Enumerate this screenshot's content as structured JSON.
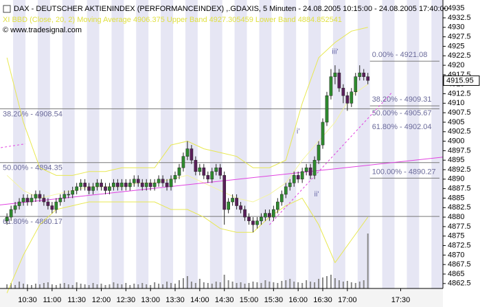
{
  "chart_data": {
    "type": "candlestick",
    "title": "DAX  - DEUTSCHER AKTIENINDEX (PERFORMANCEINDEX) ,.GDAXIS, 5 Minuten - 24.08.2005 10:15:00 - 24.08.2005 17:40:00",
    "subtitle": "XI BBD (Close, 20, 2) Moving Average 4906.375 Upper Band 4927.305459 Lower Band 4884.852541",
    "source": "© www.tradesignal.com",
    "xlim": [
      -1.7,
      106.3
    ],
    "ylim": [
      4861.2,
      4937.2
    ],
    "yticks": [
      4935,
      4932.5,
      4930,
      4927.5,
      4925,
      4922.5,
      4920,
      4917.5,
      4915,
      4912.5,
      4910,
      4907.5,
      4905,
      4902.5,
      4900,
      4897.5,
      4895,
      4892.5,
      4890,
      4887.5,
      4885,
      4882.5,
      4880,
      4877.5,
      4875,
      4872.5,
      4870,
      4867.5,
      4865,
      4862.5
    ],
    "xticks": [
      {
        "value": 5,
        "label": "10:30"
      },
      {
        "value": 11,
        "label": "11:00"
      },
      {
        "value": 17,
        "label": "11:30"
      },
      {
        "value": 23,
        "label": "12:00"
      },
      {
        "value": 29,
        "label": "12:30"
      },
      {
        "value": 35,
        "label": "13:00"
      },
      {
        "value": 41,
        "label": "13:30"
      },
      {
        "value": 47,
        "label": "14:00"
      },
      {
        "value": 53,
        "label": "14:30"
      },
      {
        "value": 59,
        "label": "15:00"
      },
      {
        "value": 65,
        "label": "15:30"
      },
      {
        "value": 71,
        "label": "16:00"
      },
      {
        "value": 77,
        "label": "16:30"
      },
      {
        "value": 83,
        "label": "17:00"
      },
      {
        "value": 96,
        "label": "17:30"
      }
    ],
    "up_color": "#2e8b2e",
    "down_color": "#5a1f5a",
    "open": [
      4879,
      4880,
      4882,
      4883,
      4884,
      4885,
      4884,
      4885,
      4886,
      4885,
      4884,
      4883,
      4882,
      4884,
      4885,
      4886,
      4886,
      4887,
      4888,
      4889,
      4888,
      4887,
      4888,
      4889,
      4888,
      4887,
      4888,
      4889,
      4888,
      4889,
      4888,
      4889,
      4890,
      4889,
      4888,
      4889,
      4888,
      4889,
      4890,
      4889,
      4888,
      4890,
      4891,
      4893,
      4896,
      4898,
      4895,
      4892,
      4893,
      4891,
      4890,
      4892,
      4893,
      4891,
      4882,
      4884,
      4885,
      4883,
      4882,
      4880,
      4879,
      4878,
      4879,
      4880,
      4881,
      4880,
      4882,
      4884,
      4886,
      4888,
      4889,
      4891,
      4890,
      4892,
      4893,
      4891,
      4895,
      4899,
      4905,
      4912,
      4917,
      4918,
      4914,
      4912,
      4910,
      4913,
      4917,
      4918,
      4917
    ],
    "high": [
      4881,
      4883,
      4884,
      4885,
      4886,
      4886,
      4886,
      4887,
      4887,
      4886,
      4885,
      4884,
      4885,
      4886,
      4887,
      4887,
      4888,
      4889,
      4890,
      4890,
      4889,
      4889,
      4890,
      4890,
      4889,
      4889,
      4890,
      4890,
      4890,
      4890,
      4890,
      4891,
      4891,
      4890,
      4890,
      4890,
      4890,
      4891,
      4891,
      4890,
      4891,
      4892,
      4894,
      4897,
      4900,
      4899,
      4896,
      4894,
      4894,
      4892,
      4893,
      4894,
      4894,
      4892,
      4885,
      4886,
      4886,
      4884,
      4883,
      4881,
      4880,
      4880,
      4881,
      4882,
      4882,
      4883,
      4885,
      4887,
      4889,
      4890,
      4892,
      4892,
      4893,
      4894,
      4894,
      4896,
      4900,
      4906,
      4913,
      4919,
      4920,
      4919,
      4915,
      4913,
      4914,
      4918,
      4920,
      4919,
      4918
    ],
    "low": [
      4878,
      4879,
      4881,
      4882,
      4883,
      4883,
      4883,
      4884,
      4884,
      4883,
      4882,
      4881,
      4881,
      4883,
      4884,
      4885,
      4885,
      4886,
      4887,
      4887,
      4886,
      4886,
      4887,
      4887,
      4886,
      4886,
      4887,
      4887,
      4887,
      4887,
      4887,
      4888,
      4888,
      4887,
      4887,
      4887,
      4887,
      4888,
      4888,
      4887,
      4887,
      4889,
      4890,
      4892,
      4895,
      4894,
      4891,
      4891,
      4890,
      4889,
      4889,
      4891,
      4890,
      4878,
      4881,
      4883,
      4882,
      4881,
      4879,
      4878,
      4876,
      4877,
      4878,
      4879,
      4879,
      4879,
      4881,
      4883,
      4885,
      4887,
      4888,
      4889,
      4889,
      4891,
      4890,
      4890,
      4894,
      4898,
      4904,
      4911,
      4915,
      4913,
      4910,
      4908,
      4909,
      4912,
      4916,
      4916,
      4915
    ],
    "close": [
      4880,
      4882,
      4883,
      4884,
      4885,
      4884,
      4885,
      4886,
      4885,
      4884,
      4883,
      4882,
      4884,
      4885,
      4886,
      4886,
      4887,
      4888,
      4889,
      4888,
      4887,
      4888,
      4889,
      4888,
      4887,
      4888,
      4889,
      4888,
      4889,
      4888,
      4889,
      4890,
      4889,
      4888,
      4889,
      4888,
      4889,
      4890,
      4889,
      4888,
      4890,
      4891,
      4893,
      4896,
      4898,
      4895,
      4892,
      4893,
      4891,
      4890,
      4892,
      4893,
      4891,
      4882,
      4884,
      4885,
      4883,
      4882,
      4880,
      4879,
      4878,
      4879,
      4880,
      4881,
      4880,
      4882,
      4884,
      4886,
      4888,
      4889,
      4891,
      4890,
      4892,
      4893,
      4891,
      4895,
      4899,
      4905,
      4912,
      4917,
      4918,
      4914,
      4912,
      4910,
      4913,
      4917,
      4918,
      4917,
      4916
    ],
    "volume": [
      6,
      8,
      5,
      10,
      7,
      6,
      5,
      7,
      6,
      8,
      9,
      6,
      5,
      7,
      8,
      6,
      5,
      9,
      7,
      6,
      5,
      8,
      6,
      7,
      5,
      6,
      9,
      7,
      6,
      8,
      5,
      7,
      6,
      8,
      6,
      5,
      9,
      7,
      6,
      10,
      8,
      7,
      12,
      15,
      18,
      10,
      8,
      14,
      9,
      8,
      7,
      10,
      9,
      20,
      12,
      10,
      8,
      9,
      7,
      8,
      10,
      9,
      8,
      12,
      10,
      9,
      8,
      11,
      12,
      14,
      10,
      9,
      8,
      12,
      10,
      9,
      14,
      16,
      18,
      20,
      15,
      12,
      10,
      11,
      9,
      8,
      10,
      12,
      80
    ],
    "volume_lim": [
      0,
      100
    ],
    "volume_color": "#888888",
    "bands": {
      "x": [
        0,
        4,
        8,
        12,
        16,
        20,
        24,
        28,
        32,
        36,
        40,
        44,
        48,
        52,
        56,
        60,
        64,
        68,
        72,
        76,
        80,
        84,
        88
      ],
      "color": "#e8e850",
      "series": [
        {
          "name": "Upper Band",
          "values": [
            4922,
            4905,
            4893,
            4891,
            4891,
            4892,
            4892,
            4893,
            4893,
            4893,
            4899,
            4900,
            4898,
            4897,
            4896,
            4893,
            4893,
            4895,
            4910,
            4922,
            4926,
            4929,
            4930
          ]
        },
        {
          "name": "Moving Average",
          "values": [
            4891,
            4887,
            4885,
            4886,
            4887,
            4888,
            4888,
            4888,
            4889,
            4889,
            4890,
            4891,
            4889,
            4887,
            4885,
            4884,
            4886,
            4889,
            4895,
            4900,
            4905,
            4912,
            4915
          ]
        },
        {
          "name": "Lower Band",
          "values": [
            4860,
            4870,
            4878,
            4882,
            4883,
            4884,
            4884,
            4884,
            4884,
            4884,
            4882,
            4882,
            4880,
            4877,
            4876,
            4876,
            4880,
            4883,
            4885,
            4878,
            4868,
            4874,
            4880
          ]
        }
      ]
    },
    "trendlines": [
      {
        "x": [
          -1.7,
          106.3
        ],
        "y": [
          4883.2,
          4895.8
        ],
        "dashed": false
      },
      {
        "x": [
          64,
          94
        ],
        "y": [
          4878,
          4913
        ],
        "dashed": true
      },
      {
        "x": [
          -1.5,
          4.5
        ],
        "y": [
          4898.3,
          4899.3
        ],
        "dashed": true
      }
    ],
    "trend_color": "#e040e0",
    "fibs": [
      {
        "label": "38.20% - 4908.54",
        "value": 4908.54,
        "side": "left"
      },
      {
        "label": "50.00% - 4894.35",
        "value": 4894.35,
        "side": "left"
      },
      {
        "label": "61.80% - 4880.17",
        "value": 4880.17,
        "side": "left"
      },
      {
        "label": "0.00% - 4921.08",
        "value": 4921.08,
        "side": "right"
      },
      {
        "label": "38.20% - 4909.31",
        "value": 4909.31,
        "side": "right"
      },
      {
        "label": "50.00% - 4905.67",
        "value": 4905.67,
        "side": "right"
      },
      {
        "label": "61.80% - 4902.04",
        "value": 4902.04,
        "side": "right"
      },
      {
        "label": "100.00% - 4890.27",
        "value": 4890.27,
        "side": "right"
      }
    ],
    "last": {
      "value": 4915.95,
      "label": "4915.95"
    },
    "annotations": [
      {
        "text": "iii'",
        "x": 80,
        "y": 4923.5
      },
      {
        "text": "i'",
        "x": 71,
        "y": 4902.5
      },
      {
        "text": "ii'",
        "x": 75.5,
        "y": 4886
      }
    ]
  }
}
